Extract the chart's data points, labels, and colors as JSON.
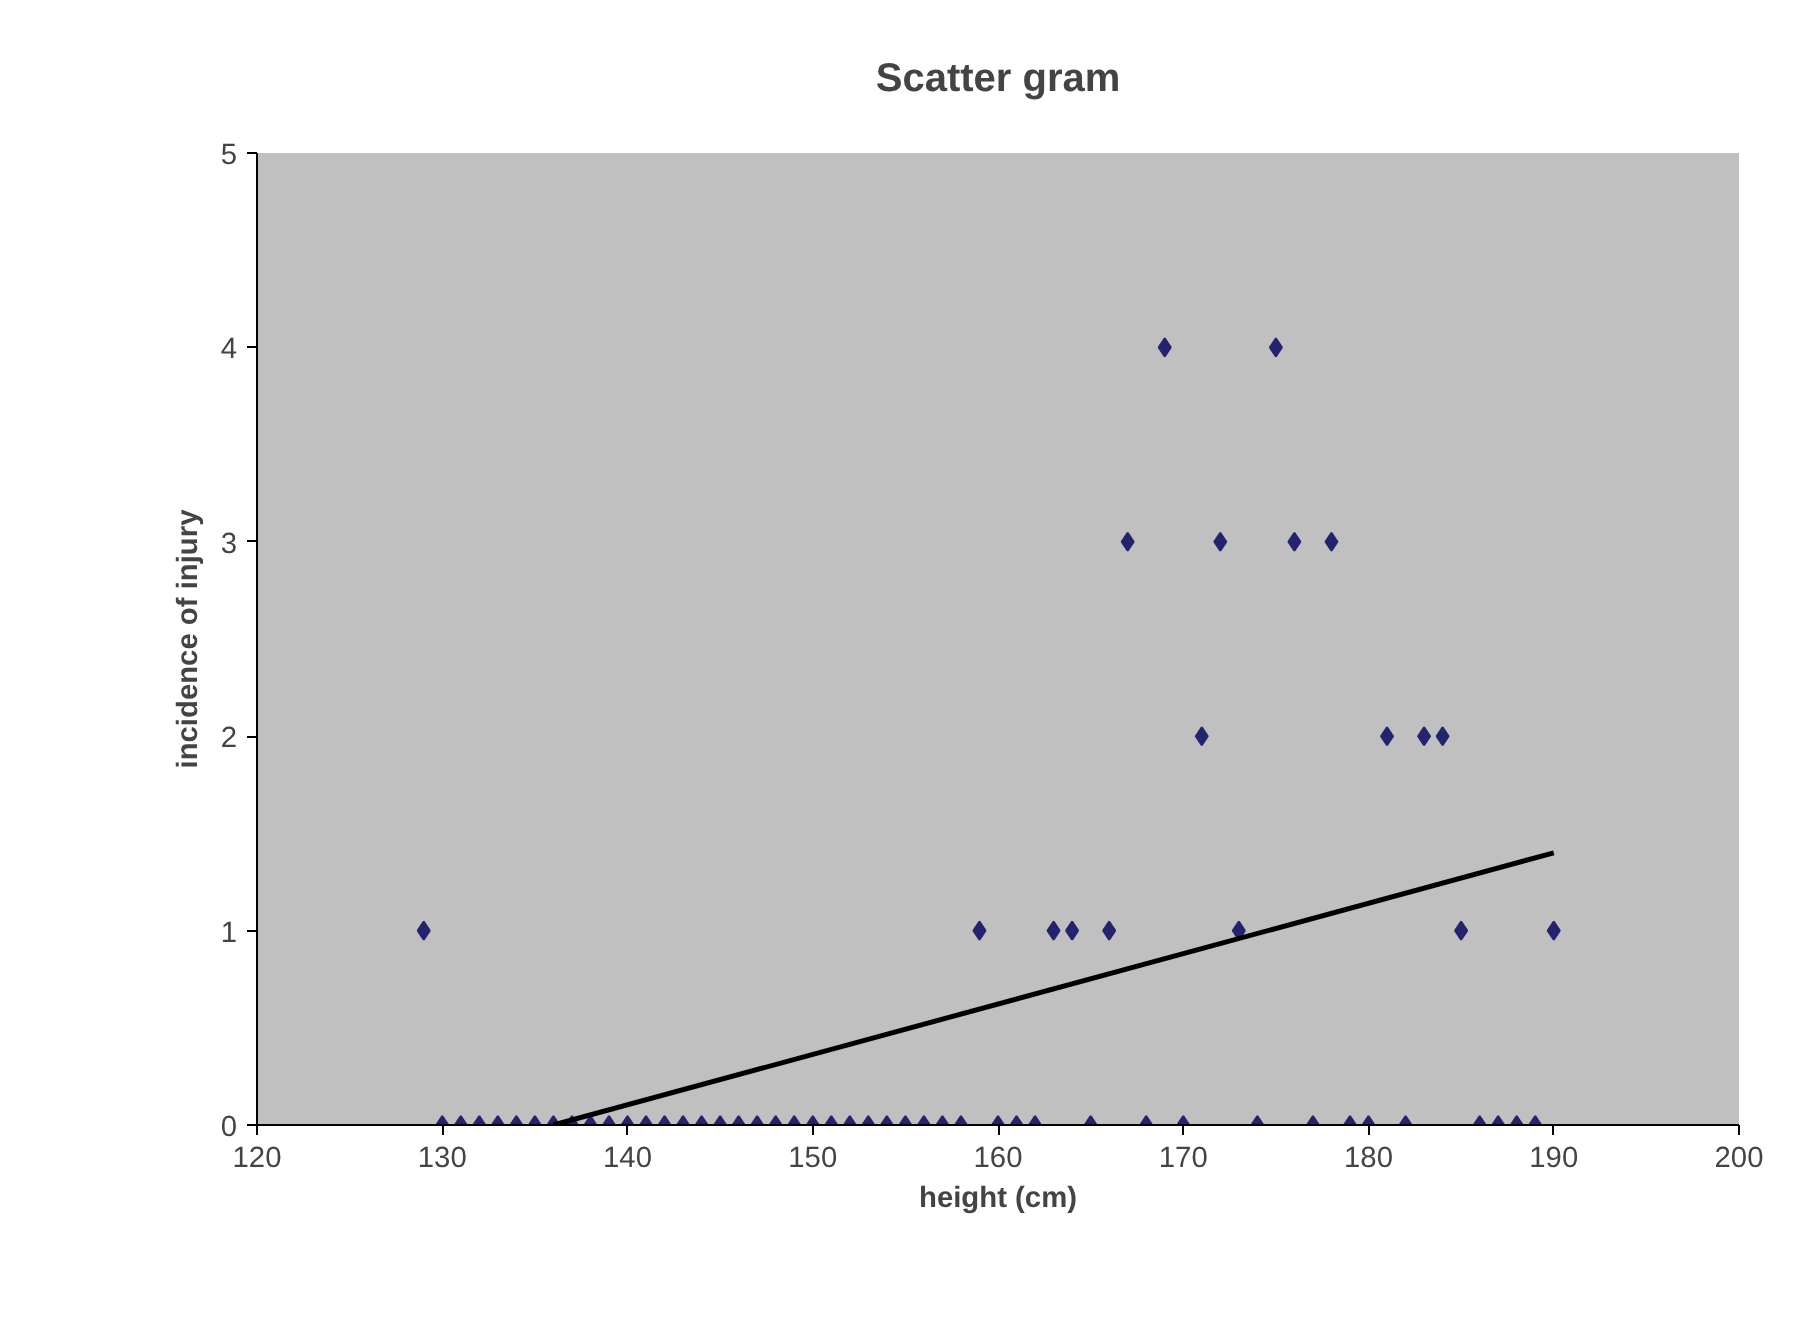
{
  "chart_data": {
    "type": "scatter",
    "title": "Scatter gram",
    "xlabel": "height (cm)",
    "ylabel": "incidence of injury",
    "xlim": [
      120,
      200
    ],
    "xticks": [
      120,
      130,
      140,
      150,
      160,
      170,
      180,
      190,
      200
    ],
    "ylim": [
      0,
      5
    ],
    "yticks": [
      0,
      1,
      2,
      3,
      4,
      5
    ],
    "grid": false,
    "series": [
      {
        "marker": "diamond",
        "color": "#24246e",
        "x": [
          129,
          130,
          131,
          132,
          133,
          134,
          135,
          136,
          137,
          138,
          139,
          140,
          141,
          142,
          143,
          144,
          145,
          146,
          147,
          148,
          149,
          150,
          151,
          152,
          153,
          154,
          155,
          156,
          157,
          158,
          159,
          160,
          161,
          162,
          163,
          164,
          165,
          166,
          167,
          168,
          169,
          170,
          171,
          172,
          173,
          174,
          175,
          176,
          177,
          178,
          179,
          180,
          181,
          182,
          183,
          184,
          185,
          186,
          187,
          188,
          189,
          190
        ],
        "values": [
          1,
          0,
          0,
          0,
          0,
          0,
          0,
          0,
          0,
          0,
          0,
          0,
          0,
          0,
          0,
          0,
          0,
          0,
          0,
          0,
          0,
          0,
          0,
          0,
          0,
          0,
          0,
          0,
          0,
          0,
          1,
          0,
          0,
          0,
          1,
          1,
          0,
          1,
          3,
          0,
          4,
          0,
          2,
          3,
          1,
          0,
          4,
          3,
          0,
          3,
          0,
          0,
          2,
          0,
          2,
          2,
          1,
          0,
          0,
          0,
          0,
          1
        ]
      },
      {
        "type": "line",
        "color": "#000000",
        "x": [
          136,
          190
        ],
        "values": [
          0,
          1.4
        ]
      }
    ]
  }
}
